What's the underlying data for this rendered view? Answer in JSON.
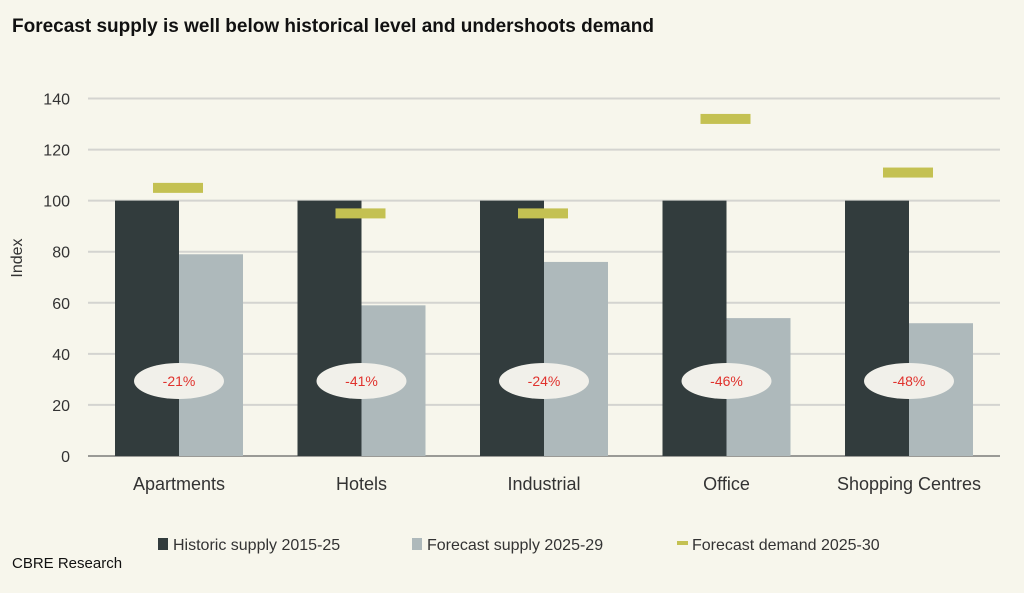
{
  "title": "Forecast supply is well below historical level and undershoots demand",
  "source": "CBRE Research",
  "colors": {
    "background": "#f7f6ec",
    "historic": "#323c3d",
    "forecast": "#aeb9bb",
    "demand": "#c4c152",
    "change_label": "#e0322d",
    "grid": "#d4d4d0"
  },
  "chart_data": {
    "type": "bar",
    "title": "Forecast supply is well below historical level and undershoots demand",
    "ylabel": "Index",
    "xlabel": "",
    "ylim": [
      0,
      140
    ],
    "yticks": [
      0,
      20,
      40,
      60,
      80,
      100,
      120,
      140
    ],
    "grid": true,
    "legend_placement": "bottom",
    "categories": [
      "Apartments",
      "Hotels",
      "Industrial",
      "Office",
      "Shopping Centres"
    ],
    "series": [
      {
        "name": "Historic supply 2015-25",
        "kind": "bar",
        "values": [
          100,
          100,
          100,
          100,
          100
        ]
      },
      {
        "name": "Forecast supply 2025-29",
        "kind": "bar",
        "values": [
          79,
          59,
          76,
          54,
          52
        ]
      },
      {
        "name": "Forecast demand 2025-30",
        "kind": "marker",
        "values": [
          105,
          95,
          95,
          132,
          111
        ]
      }
    ],
    "annotations": [
      "-21%",
      "-41%",
      "-24%",
      "-46%",
      "-48%"
    ]
  }
}
